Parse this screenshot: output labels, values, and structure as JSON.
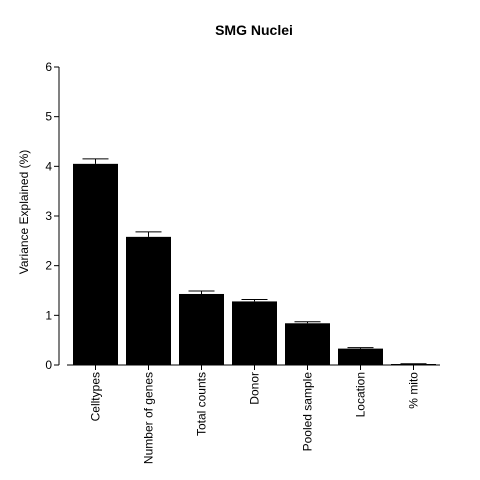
{
  "chart_data": {
    "type": "bar",
    "title": "SMG Nuclei",
    "xlabel": "",
    "ylabel": "Variance Explained (%)",
    "ylim": [
      0,
      6
    ],
    "yticks": [
      "0",
      "1",
      "2",
      "3",
      "4",
      "5",
      "6"
    ],
    "categories": [
      "Celltypes",
      "Number of genes",
      "Total counts",
      "Donor",
      "Pooled sample",
      "Location",
      "% mito"
    ],
    "values": [
      4.05,
      2.58,
      1.43,
      1.28,
      0.84,
      0.33,
      0.02
    ],
    "errors": [
      0.1,
      0.1,
      0.06,
      0.04,
      0.03,
      0.02,
      0.005
    ],
    "bar_color": "#000000",
    "grid": false,
    "legend": "none"
  }
}
